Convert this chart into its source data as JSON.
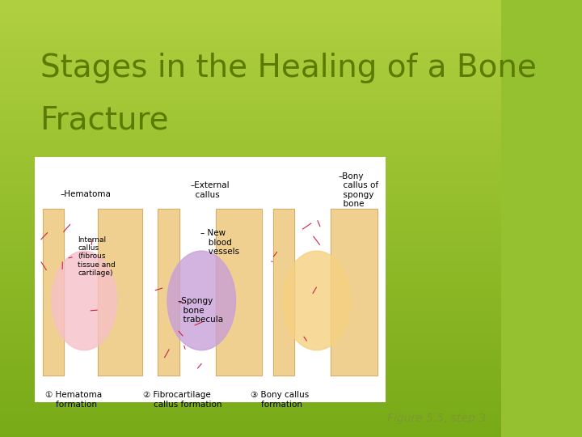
{
  "title_line1": "Stages in the Healing of a Bone",
  "title_line2": "Fracture",
  "title_color": "#5a7a00",
  "title_fontsize": 28,
  "background_color_top": "#a8c840",
  "background_color_bottom": "#7aaa20",
  "figure_caption": "Figure 5.5, step 3",
  "caption_color": "#7a9a30",
  "caption_fontsize": 10,
  "image_url": "bone_fracture_stages.png",
  "bg_gradient_top": "#b0d040",
  "bg_gradient_bottom": "#78aa18"
}
